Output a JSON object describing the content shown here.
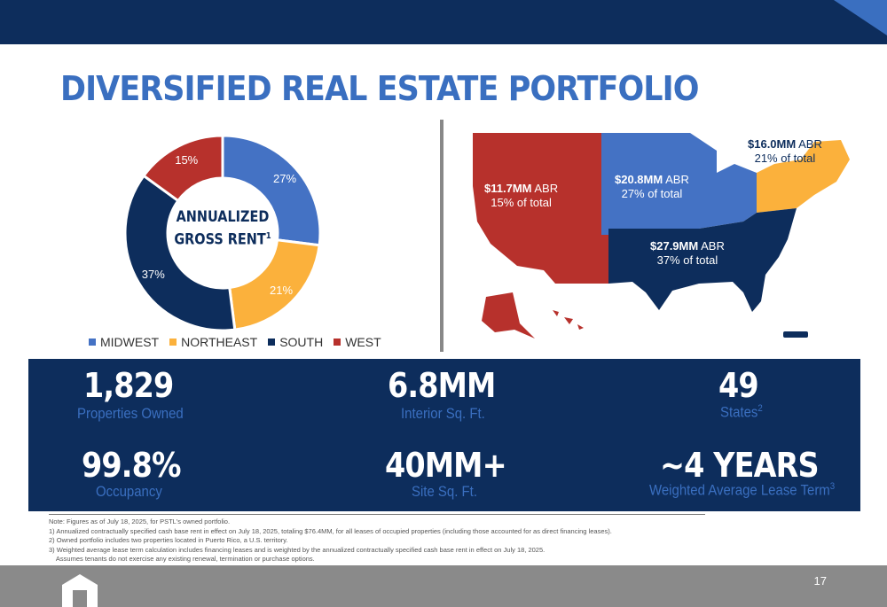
{
  "title": "DIVERSIFIED REAL ESTATE PORTFOLIO",
  "donut": {
    "center_label_line1": "ANNUALIZED",
    "center_label_line2": "GROSS RENT",
    "center_sup": "1",
    "segments": [
      {
        "name": "MIDWEST",
        "label": "27%",
        "value": 27,
        "color": "#4472c4"
      },
      {
        "name": "NORTHEAST",
        "label": "21%",
        "value": 21,
        "color": "#fbb13c"
      },
      {
        "name": "SOUTH",
        "label": "37%",
        "value": 37,
        "color": "#0d2d5c"
      },
      {
        "name": "WEST",
        "label": "15%",
        "value": 15,
        "color": "#b7312c"
      }
    ]
  },
  "legend": [
    "MIDWEST",
    "NORTHEAST",
    "SOUTH",
    "WEST"
  ],
  "map": {
    "west": {
      "amount": "$11.7MM",
      "abr": "ABR",
      "pct": "15% of total"
    },
    "midwest": {
      "amount": "$20.8MM",
      "abr": "ABR",
      "pct": "27% of total"
    },
    "northeast": {
      "amount": "$16.0MM",
      "abr": "ABR",
      "pct": "21% of total"
    },
    "south": {
      "amount": "$27.9MM",
      "abr": "ABR",
      "pct": "37% of total"
    }
  },
  "stats": {
    "properties": {
      "value": "1,829",
      "label": "Properties Owned"
    },
    "interior": {
      "value": "6.8MM",
      "label": "Interior Sq. Ft."
    },
    "states": {
      "value": "49",
      "label": "States",
      "sup": "2"
    },
    "occupancy": {
      "value": "99.8%",
      "label": "Occupancy"
    },
    "site": {
      "value": "40MM+",
      "label": "Site Sq. Ft."
    },
    "lease": {
      "value": "~4 YEARS",
      "label": "Weighted Average Lease Term",
      "sup": "3"
    }
  },
  "notes": [
    "Note: Figures as of July 18, 2025, for PSTL's owned portfolio.",
    "1) Annualized contractually specified cash base rent in effect on July 18, 2025, totaling $76.4MM, for all leases of occupied properties (including those accounted for as direct financing leases).",
    "2) Owned portfolio includes two properties located in Puerto Rico, a U.S. territory.",
    "3) Weighted average lease term calculation includes financing leases and is weighted by the annualized contractually specified cash base rent in effect on July 18, 2025.",
    "    Assumes tenants do not exercise any existing renewal, termination or purchase options."
  ],
  "page_number": "17"
}
